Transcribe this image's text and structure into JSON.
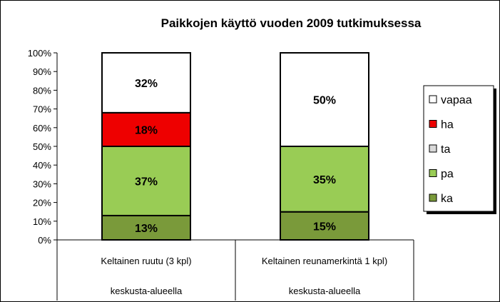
{
  "chart_data": {
    "type": "bar",
    "stacked": true,
    "title": "Paikkojen käyttö vuoden 2009 tutkimuksessa",
    "xlabel": "",
    "ylabel": "",
    "ylim": [
      0,
      100
    ],
    "yticks": [
      "0%",
      "10%",
      "20%",
      "30%",
      "40%",
      "50%",
      "60%",
      "70%",
      "80%",
      "90%",
      "100%"
    ],
    "categories": [
      {
        "line1": "Keltainen ruutu (3 kpl)",
        "line2": "keskusta-alueella"
      },
      {
        "line1": "Keltainen reunamerkintä 1 kpl)",
        "line2": "keskusta-alueella"
      }
    ],
    "series": [
      {
        "name": "ka",
        "color": "#7a9a3a",
        "values": [
          13,
          15
        ],
        "labels": [
          "13%",
          "15%"
        ]
      },
      {
        "name": "pa",
        "color": "#99cc55",
        "values": [
          37,
          35
        ],
        "labels": [
          "37%",
          "35%"
        ]
      },
      {
        "name": "ta",
        "color": "#d9d9d9",
        "values": [
          0,
          0
        ],
        "labels": [
          "",
          ""
        ]
      },
      {
        "name": "ha",
        "color": "#ee0000",
        "values": [
          18,
          0
        ],
        "labels": [
          "18%",
          ""
        ]
      },
      {
        "name": "vapaa",
        "color": "#ffffff",
        "values": [
          32,
          50
        ],
        "labels": [
          "32%",
          "50%"
        ]
      }
    ],
    "legend_order": [
      "vapaa",
      "ha",
      "ta",
      "pa",
      "ka"
    ],
    "legend": "right"
  }
}
